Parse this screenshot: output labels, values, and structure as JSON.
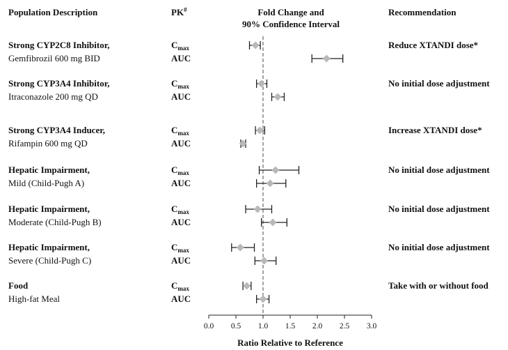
{
  "headers": {
    "population": "Population Description",
    "pk": "PK",
    "pk_sup": "#",
    "fold_line1": "Fold Change and",
    "fold_line2": "90% Confidence Interval",
    "recommendation": "Recommendation"
  },
  "chart_data": {
    "type": "forest",
    "xlabel": "Ratio Relative to Reference",
    "xlim": [
      0.0,
      3.0
    ],
    "ticks": [
      "0.0",
      "0.5",
      "1.0",
      "1.5",
      "2.0",
      "2.5",
      "3.0"
    ],
    "reference_line": 1.0,
    "groups": [
      {
        "title": "Strong CYP2C8 Inhibitor,",
        "subtitle": "Gemfibrozil 600 mg BID",
        "recommendation": "Reduce XTANDI dose*",
        "rows": [
          {
            "pk": "max",
            "pk_base": "C",
            "pk_sub": "max",
            "point": 0.86,
            "lower": 0.75,
            "upper": 0.95
          },
          {
            "pk": "AUC",
            "pk_base": "AUC",
            "pk_sub": "",
            "point": 2.17,
            "lower": 1.9,
            "upper": 2.47
          }
        ]
      },
      {
        "title": "Strong CYP3A4 Inhibitor,",
        "subtitle": "Itraconazole 200 mg QD",
        "recommendation": "No initial dose adjustment",
        "rows": [
          {
            "pk": "max",
            "pk_base": "C",
            "pk_sub": "max",
            "point": 0.97,
            "lower": 0.88,
            "upper": 1.07
          },
          {
            "pk": "AUC",
            "pk_base": "AUC",
            "pk_sub": "",
            "point": 1.27,
            "lower": 1.16,
            "upper": 1.39
          }
        ]
      },
      {
        "title": "Strong CYP3A4 Inducer,",
        "subtitle": "Rifampin 600 mg QD",
        "recommendation": "Increase XTANDI dose*",
        "rows": [
          {
            "pk": "max",
            "pk_base": "C",
            "pk_sub": "max",
            "point": 0.94,
            "lower": 0.86,
            "upper": 1.03
          },
          {
            "pk": "AUC",
            "pk_base": "AUC",
            "pk_sub": "",
            "point": 0.63,
            "lower": 0.59,
            "upper": 0.68
          }
        ]
      },
      {
        "title": "Hepatic Impairment,",
        "subtitle": "Mild (Child-Pugh A)",
        "recommendation": "No initial dose adjustment",
        "rows": [
          {
            "pk": "max",
            "pk_base": "C",
            "pk_sub": "max",
            "point": 1.23,
            "lower": 0.93,
            "upper": 1.66
          },
          {
            "pk": "AUC",
            "pk_base": "AUC",
            "pk_sub": "",
            "point": 1.13,
            "lower": 0.88,
            "upper": 1.42
          }
        ]
      },
      {
        "title": "Hepatic Impairment,",
        "subtitle": "Moderate (Child-Pugh B)",
        "recommendation": "No initial dose adjustment",
        "rows": [
          {
            "pk": "max",
            "pk_base": "C",
            "pk_sub": "max",
            "point": 0.9,
            "lower": 0.68,
            "upper": 1.16
          },
          {
            "pk": "AUC",
            "pk_base": "AUC",
            "pk_sub": "",
            "point": 1.18,
            "lower": 0.97,
            "upper": 1.44
          }
        ]
      },
      {
        "title": "Hepatic Impairment,",
        "subtitle": "Severe (Child-Pugh C)",
        "recommendation": "No initial dose adjustment",
        "rows": [
          {
            "pk": "max",
            "pk_base": "C",
            "pk_sub": "max",
            "point": 0.58,
            "lower": 0.42,
            "upper": 0.84
          },
          {
            "pk": "AUC",
            "pk_base": "AUC",
            "pk_sub": "",
            "point": 1.02,
            "lower": 0.85,
            "upper": 1.24
          }
        ]
      },
      {
        "title": "Food",
        "subtitle": "High-fat Meal",
        "recommendation": "Take with or without food",
        "rows": [
          {
            "pk": "max",
            "pk_base": "C",
            "pk_sub": "max",
            "point": 0.7,
            "lower": 0.63,
            "upper": 0.78
          },
          {
            "pk": "AUC",
            "pk_base": "AUC",
            "pk_sub": "",
            "point": 1.0,
            "lower": 0.88,
            "upper": 1.11
          }
        ]
      }
    ]
  }
}
